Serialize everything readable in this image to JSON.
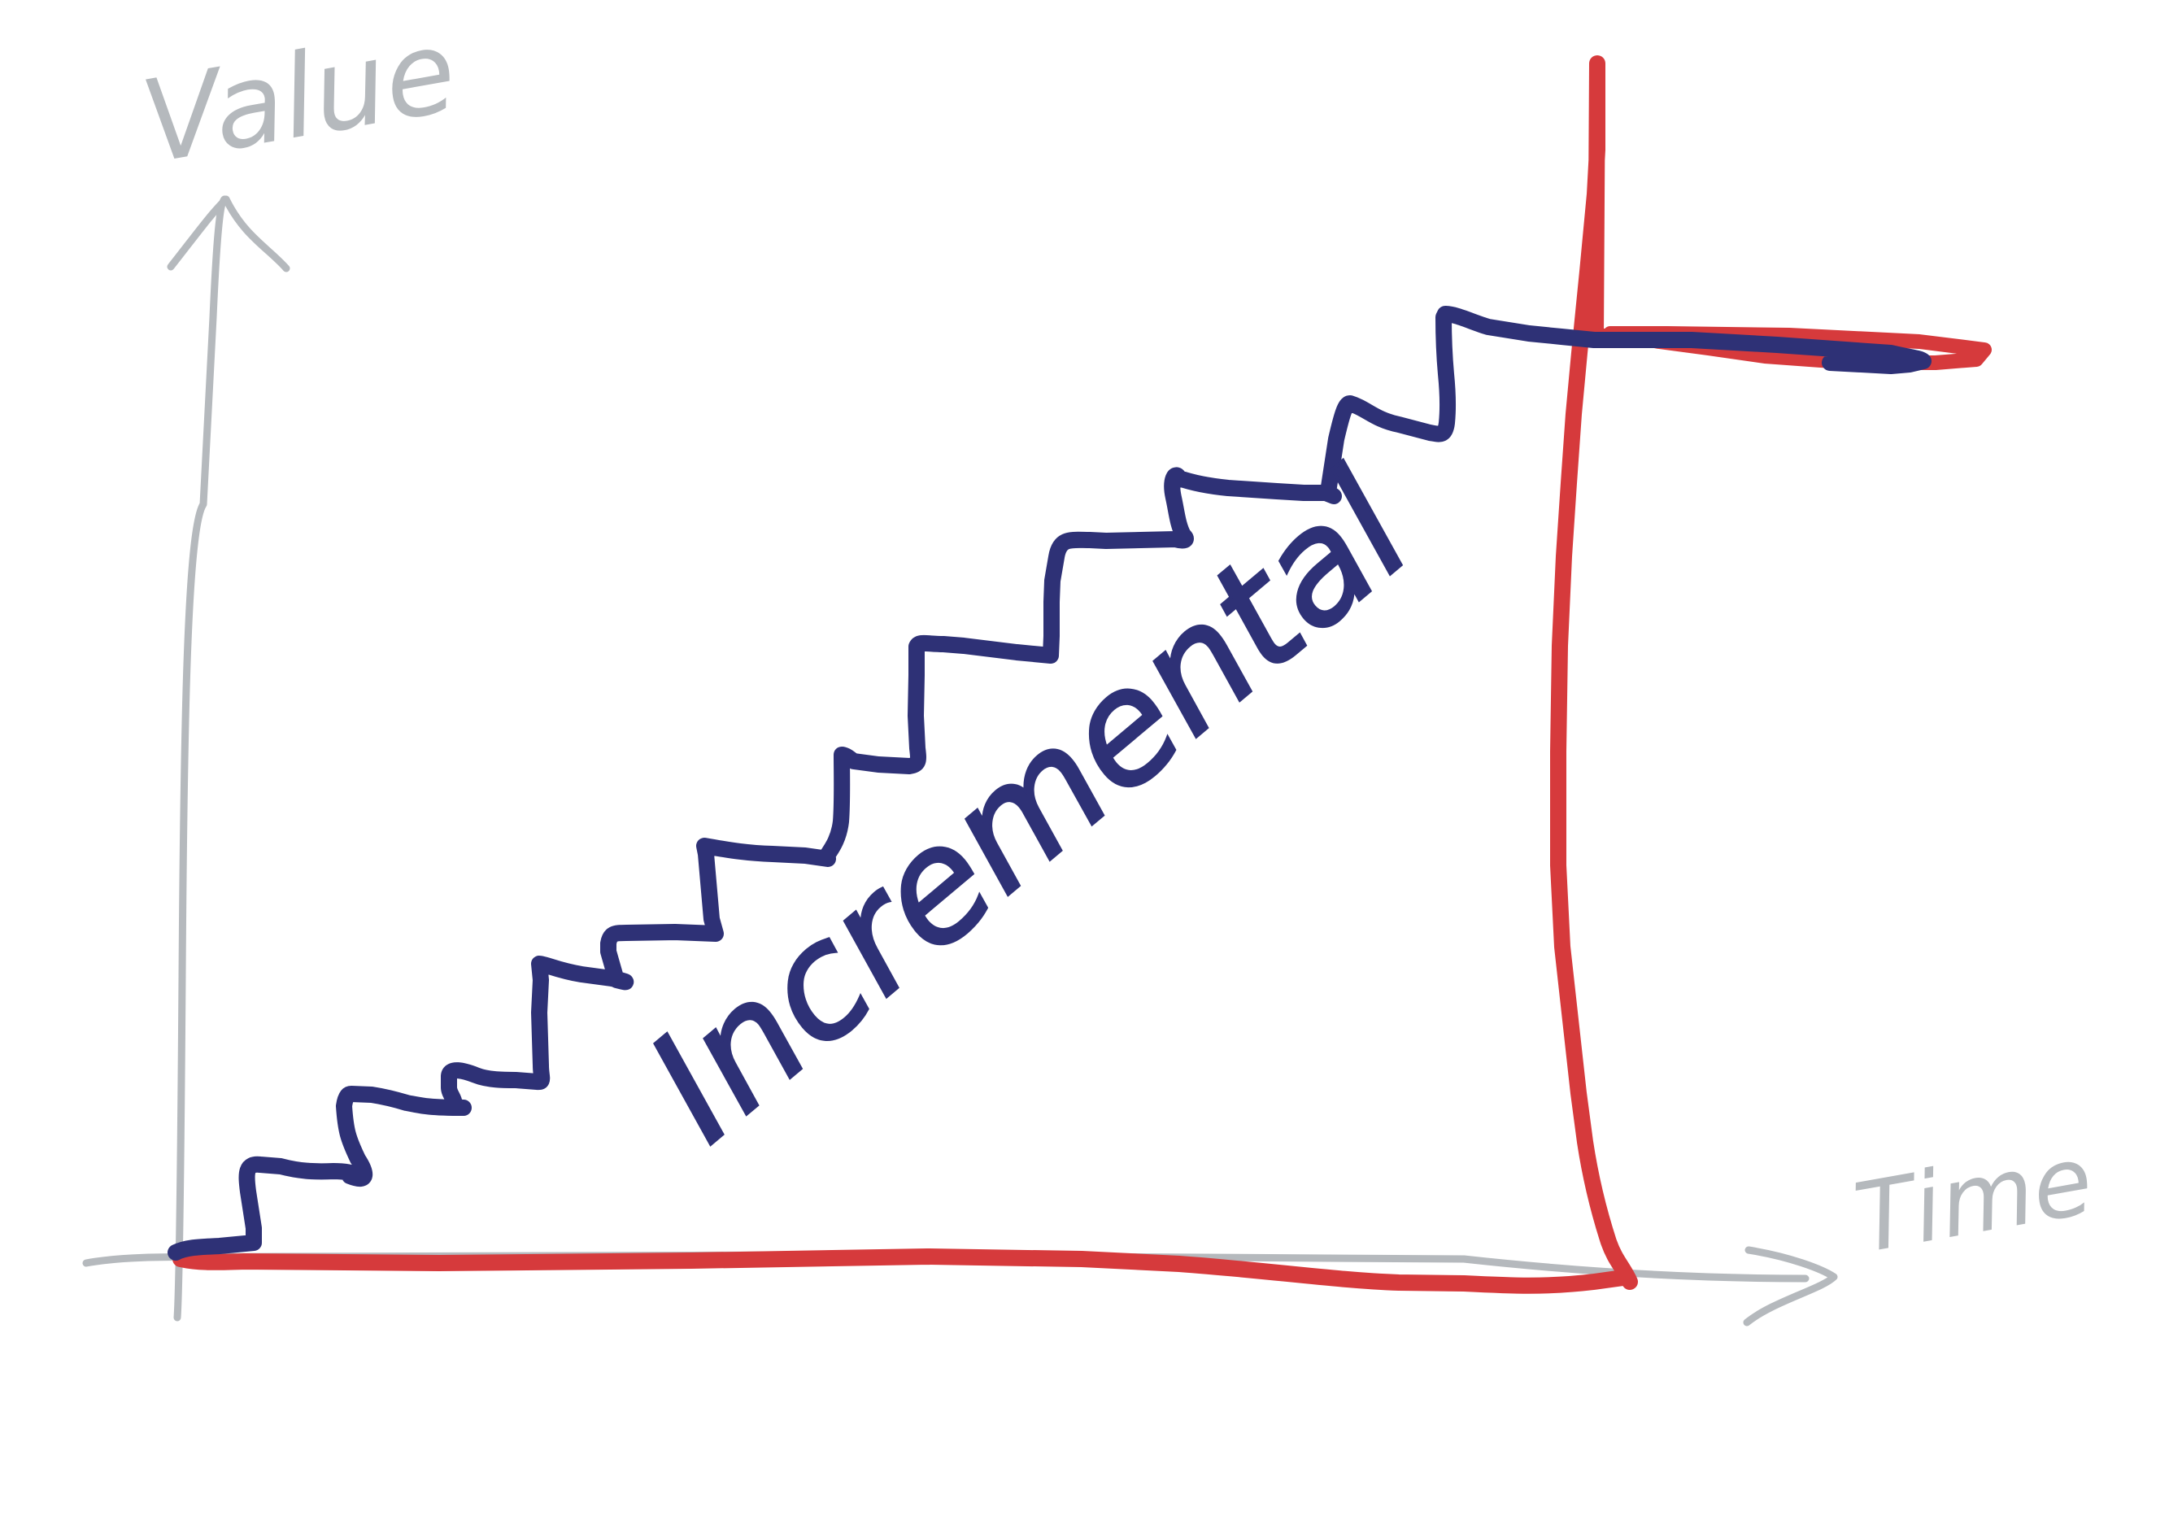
{
  "axes": {
    "y_label": "Value",
    "x_label": "Time"
  },
  "curves": [
    {
      "name": "",
      "color": "#2e3176"
    },
    {
      "name": "",
      "color": "#d63a3c"
    }
  ],
  "annotation": "Incremental",
  "colors": {
    "axis": "#b5b9bd",
    "incremental": "#2e3176",
    "step": "#d63a3c",
    "background": "#ffffff"
  }
}
